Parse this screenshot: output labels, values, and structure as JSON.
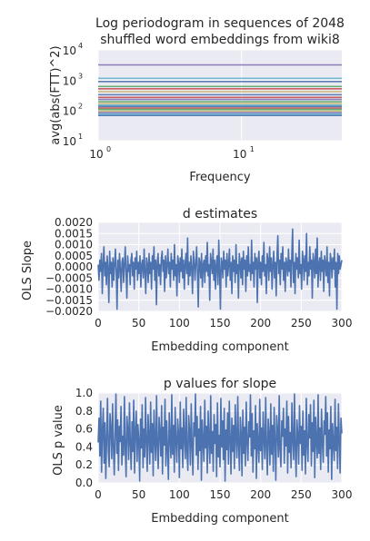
{
  "figure": {
    "background": "#ffffff",
    "panel_background": "#eaeaf2",
    "grid_color": "#ffffff",
    "line_color": "#4c72b0"
  },
  "chart_data": [
    {
      "type": "line",
      "title": "Log periodogram in sequences of 2048 shuffled word embeddings from wiki8",
      "title_lines": [
        "Log periodogram in sequences of 2048",
        "shuffled word embeddings from wiki8"
      ],
      "xlabel": "Frequency",
      "ylabel": "avg(abs(FTT)^2)",
      "x_scale": "log",
      "y_scale": "log",
      "xlim": [
        1,
        50
      ],
      "ylim": [
        10,
        10000
      ],
      "x_ticks": [
        {
          "value": 1,
          "base": "10",
          "exp": "0"
        },
        {
          "value": 10,
          "base": "10",
          "exp": "1"
        }
      ],
      "y_ticks": [
        {
          "value": 10,
          "base": "10",
          "exp": "1"
        },
        {
          "value": 100,
          "base": "10",
          "exp": "2"
        },
        {
          "value": 1000,
          "base": "10",
          "exp": "3"
        },
        {
          "value": 10000,
          "base": "10",
          "exp": "4"
        }
      ],
      "grid": true,
      "series_levels": [
        3200,
        1150,
        900,
        620,
        520,
        420,
        330,
        270,
        230,
        195,
        170,
        150,
        135,
        120,
        108,
        95,
        85,
        76,
        68
      ],
      "series_colors": [
        "#8172b2",
        "#64b5cd",
        "#4c72b0",
        "#55a868",
        "#c44e52",
        "#ccb974",
        "#4c72b0",
        "#c44e52",
        "#8172b2",
        "#55a868",
        "#ccb974",
        "#64b5cd",
        "#4c72b0",
        "#c44e52",
        "#55a868",
        "#ccb974",
        "#8172b2",
        "#64b5cd",
        "#4c72b0"
      ]
    },
    {
      "type": "line",
      "title": "d estimates",
      "xlabel": "Embedding component",
      "ylabel": "OLS Slope",
      "xlim": [
        0,
        300
      ],
      "ylim": [
        -0.002,
        0.002
      ],
      "x_ticks": [
        0,
        50,
        100,
        150,
        200,
        250,
        300
      ],
      "x_tick_labels": [
        "0",
        "50",
        "100",
        "150",
        "200",
        "250",
        "300"
      ],
      "y_ticks": [
        -0.002,
        -0.0015,
        -0.001,
        -0.0005,
        0,
        0.0005,
        0.001,
        0.0015,
        0.002
      ],
      "y_tick_labels": [
        "−0.0020",
        "−0.0015",
        "−0.0010",
        "−0.0005",
        "0.0000",
        "0.0005",
        "0.0010",
        "0.0015",
        "0.0020"
      ],
      "grid": true,
      "series": [
        {
          "values": [
            0.0001,
            -0.0006,
            0.0003,
            -0.0002,
            0.0006,
            -0.0012,
            0.0001,
            0.0009,
            -0.0004,
            0.0002,
            -0.0008,
            0.0005,
            -0.0001,
            -0.0016,
            0.0007,
            -0.0003,
            0.0002,
            -0.0009,
            0.0004,
            -0.0006,
            0.0001,
            0.0008,
            -0.0002,
            -0.0019,
            0.0003,
            -0.0005,
            0.0006,
            -0.0001,
            -0.0011,
            0.0002,
            0.0004,
            -0.0007,
            0.0001,
            0.0009,
            -0.0003,
            -0.0014,
            0.0005,
            -0.0002,
            0.0001,
            -0.0008,
            0.0003,
            0.0006,
            -0.0004,
            0.0002,
            -0.001,
            0.0004,
            -0.0001,
            0.0007,
            -0.0006,
            0.0002,
            -0.0003,
            0.0005,
            -0.0009,
            0.0001,
            0.0003,
            -0.0005,
            0.0008,
            -0.0002,
            -0.0012,
            0.0004,
            0.0001,
            -0.0007,
            0.0006,
            -0.0003,
            0.0002,
            -0.001,
            0.0005,
            -0.0001,
            0.0009,
            -0.0006,
            0.0003,
            -0.0017,
            0.0002,
            0.0006,
            -0.0004,
            0.0001,
            -0.0008,
            0.0004,
            0.0007,
            -0.0002,
            0.0003,
            -0.0011,
            0.0005,
            -0.0005,
            0.0001,
            0.0008,
            -0.0003,
            0.0002,
            -0.0009,
            0.0006,
            -0.0001,
            0.0003,
            -0.0006,
            0.001,
            -0.0004,
            0.0001,
            -0.0013,
            0.0005,
            0.0002,
            -0.0007,
            0.0004,
            -0.0002,
            0.0008,
            -0.0005,
            0.0003,
            -0.001,
            0.0001,
            0.0006,
            -0.0003,
            0.0013,
            -0.0008,
            0.0002,
            -0.0004,
            0.0005,
            -0.0001,
            -0.0012,
            0.0007,
            0.0003,
            -0.0006,
            0.0001,
            0.0009,
            -0.0002,
            -0.0018,
            0.0004,
            0.0002,
            -0.0005,
            0.0006,
            -0.0009,
            0.0001,
            0.0003,
            -0.0007,
            0.0005,
            -0.0002,
            0.0011,
            -0.0004,
            0.0001,
            -0.0015,
            0.0006,
            0.0002,
            -0.0003,
            0.0008,
            -0.0006,
            0.0003,
            -0.001,
            0.0001,
            0.0005,
            -0.0008,
            0.0012,
            -0.0002,
            -0.0019,
            0.0004,
            0.0002,
            -0.0005,
            0.0007,
            -0.0001,
            0.0003,
            -0.0009,
            0.0006,
            -0.0004,
            0.0001,
            0.0008,
            -0.0006,
            0.0002,
            -0.0012,
            0.0005,
            -0.0002,
            0.0003,
            -0.0007,
            0.001,
            -0.0003,
            0.0001,
            -0.0014,
            0.0006,
            0.0002,
            -0.0005,
            0.0004,
            -0.0008,
            0.0007,
            -0.0001,
            0.0003,
            -0.0011,
            0.0005,
            -0.0004,
            0.0009,
            -0.0002,
            0.0001,
            -0.0006,
            0.0012,
            -0.0003,
            0.0002,
            -0.0009,
            0.0006,
            -0.0001,
            0.0004,
            -0.0016,
            0.0003,
            0.0007,
            -0.0005,
            0.0002,
            -0.0008,
            0.0005,
            -0.0002,
            0.0011,
            -0.0004,
            0.0001,
            -0.0012,
            0.0006,
            0.0003,
            -0.0006,
            0.0009,
            -0.0002,
            0.0004,
            -0.001,
            0.0001,
            0.0007,
            -0.0005,
            0.0002,
            -0.0013,
            0.0005,
            0.0014,
            -0.0003,
            0.0003,
            -0.0008,
            0.0006,
            -0.0001,
            0.0009,
            -0.0006,
            0.0002,
            -0.0011,
            0.0004,
            0.0001,
            -0.0004,
            0.0008,
            -0.0002,
            0.0003,
            -0.0009,
            0.0005,
            0.0017,
            -0.0007,
            0.0002,
            -0.0012,
            0.0006,
            -0.0001,
            0.0004,
            -0.0005,
            0.0012,
            -0.0003,
            0.0001,
            -0.001,
            0.0007,
            0.0003,
            -0.0006,
            0.0005,
            -0.0002,
            0.0015,
            -0.0008,
            0.0002,
            -0.0004,
            0.0009,
            -0.0001,
            0.0003,
            -0.0014,
            0.0006,
            0.0002,
            -0.0005,
            0.0008,
            -0.0003,
            0.0013,
            -0.0009,
            0.0001,
            0.0004,
            -0.0006,
            0.0007,
            -0.0002,
            0.0003,
            -0.0011,
            0.0005,
            0.0001,
            -0.0004,
            0.0009,
            -0.0007,
            0.0002,
            -0.0013,
            0.0006,
            0.0003,
            -0.0005,
            0.0004,
            -0.0001,
            0.0008,
            -0.0009,
            0.0002,
            -0.0019,
            0.0006,
            -0.0003,
            0.0005,
            -0.0001,
            0.0001,
            0.0003
          ]
        }
      ]
    },
    {
      "type": "line",
      "title": "p values for slope",
      "xlabel": "Embedding component",
      "ylabel": "OLS p value",
      "xlim": [
        0,
        300
      ],
      "ylim": [
        0,
        1
      ],
      "x_ticks": [
        0,
        50,
        100,
        150,
        200,
        250,
        300
      ],
      "x_tick_labels": [
        "0",
        "50",
        "100",
        "150",
        "200",
        "250",
        "300"
      ],
      "y_ticks": [
        0,
        0.2,
        0.4,
        0.6,
        0.8,
        1.0
      ],
      "y_tick_labels": [
        "0.0",
        "0.2",
        "0.4",
        "0.6",
        "0.8",
        "1.0"
      ],
      "grid": true,
      "series": [
        {
          "values": [
            0.45,
            0.72,
            0.3,
            0.91,
            0.12,
            0.58,
            0.83,
            0.22,
            0.67,
            0.05,
            0.49,
            0.94,
            0.36,
            0.18,
            0.77,
            0.61,
            0.27,
            0.88,
            0.41,
            0.09,
            0.55,
            0.99,
            0.33,
            0.7,
            0.14,
            0.63,
            0.46,
            0.85,
            0.2,
            0.52,
            0.31,
            0.96,
            0.38,
            0.07,
            0.74,
            0.59,
            0.26,
            0.89,
            0.43,
            0.15,
            0.68,
            0.35,
            0.92,
            0.11,
            0.57,
            0.8,
            0.24,
            0.65,
            0.48,
            0.02,
            0.71,
            0.39,
            0.87,
            0.17,
            0.6,
            0.29,
            0.95,
            0.44,
            0.13,
            0.76,
            0.53,
            0.21,
            0.9,
            0.34,
            0.66,
            0.08,
            0.81,
            0.47,
            0.25,
            0.97,
            0.4,
            0.16,
            0.73,
            0.56,
            0.3,
            0.86,
            0.1,
            0.62,
            0.42,
            0.93,
            0.19,
            0.69,
            0.37,
            0.04,
            0.78,
            0.5,
            0.28,
            0.98,
            0.32,
            0.64,
            0.12,
            0.84,
            0.45,
            0.23,
            0.71,
            0.55,
            0.06,
            0.9,
            0.38,
            0.61,
            0.17,
            0.82,
            0.49,
            0.27,
            0.95,
            0.34,
            0.14,
            0.75,
            0.58,
            0.2,
            0.88,
            0.41,
            0.09,
            0.67,
            0.52,
            0.99,
            0.31,
            0.74,
            0.15,
            0.6,
            0.36,
            0.85,
            0.03,
            0.7,
            0.46,
            0.24,
            0.92,
            0.39,
            0.63,
            0.11,
            0.8,
            0.48,
            0.22,
            0.97,
            0.33,
            0.57,
            0.13,
            0.76,
            0.44,
            0.65,
            0.07,
            0.89,
            0.29,
            0.53,
            0.18,
            0.94,
            0.4,
            0.69,
            0.26,
            0.83,
            0.02,
            0.59,
            0.37,
            0.78,
            0.21,
            0.91,
            0.47,
            0.1,
            0.72,
            0.35,
            0.64,
            0.16,
            0.87,
            0.5,
            0.28,
            0.96,
            0.42,
            0.14,
            0.73,
            0.55,
            0.08,
            0.81,
            0.33,
            0.62,
            0.19,
            0.9,
            0.45,
            0.25,
            0.68,
            0.51,
            0.98,
            0.3,
            0.77,
            0.12,
            0.58,
            0.38,
            0.86,
            0.05,
            0.66,
            0.43,
            0.23,
            0.93,
            0.36,
            0.61,
            0.15,
            0.79,
            0.49,
            0.27,
            0.95,
            0.4,
            0.09,
            0.71,
            0.54,
            0.2,
            0.88,
            0.32,
            0.64,
            0.13,
            0.84,
            0.46,
            0.03,
            0.75,
            0.57,
            0.29,
            0.97,
            0.37,
            0.18,
            0.69,
            0.52,
            0.83,
            0.22,
            0.6,
            0.41,
            0.91,
            0.11,
            0.74,
            0.34,
            0.56,
            0.17,
            0.89,
            0.48,
            0.26,
            0.99,
            0.39,
            0.07,
            0.7,
            0.53,
            0.21,
            0.86,
            0.44,
            0.63,
            0.14,
            0.8,
            0.31,
            0.58,
            0.1,
            0.94,
            0.42,
            0.24,
            0.76,
            0.5,
            0.87,
            0.19,
            0.67,
            0.35,
            0.92,
            0.06,
            0.73,
            0.47,
            0.28,
            0.98,
            0.33,
            0.61,
            0.15,
            0.82,
            0.45,
            0.23,
            0.69,
            0.54,
            0.96,
            0.3,
            0.78,
            0.12,
            0.59,
            0.38,
            0.85,
            0.04,
            0.66,
            0.43,
            0.25,
            0.93,
            0.36,
            0.62,
            0.16,
            0.88,
            0.49,
            0.11,
            0.72,
            0.55
          ]
        }
      ]
    }
  ]
}
